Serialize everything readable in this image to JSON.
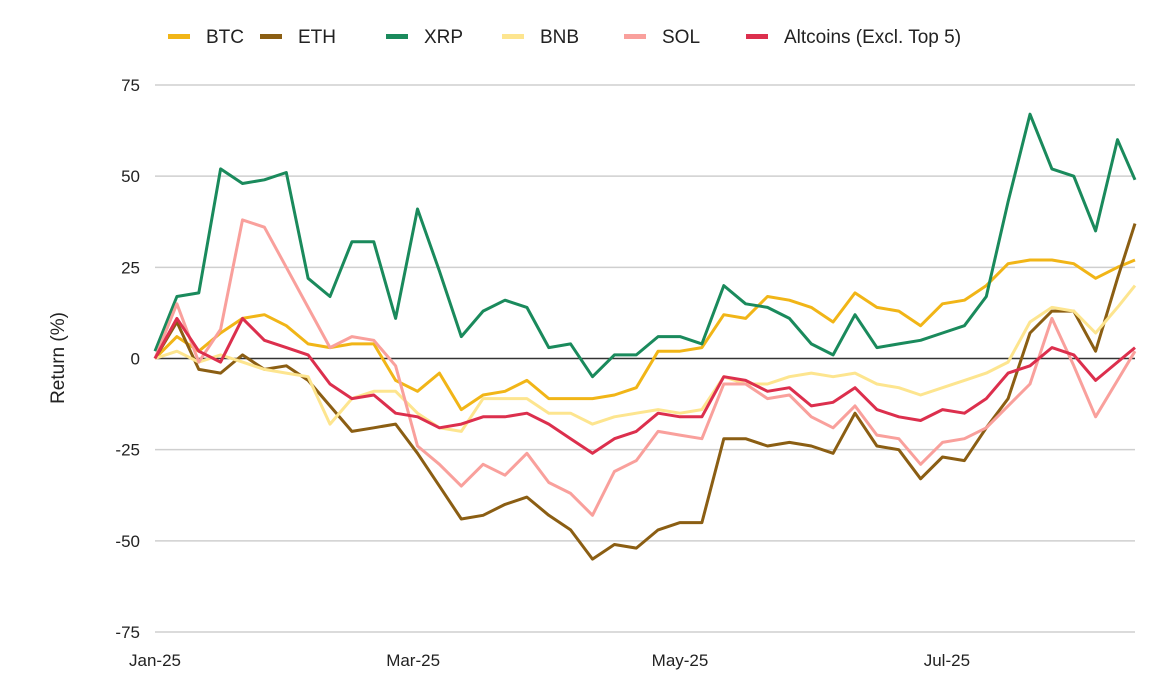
{
  "chart_data": {
    "type": "line",
    "title": "",
    "xlabel": "",
    "ylabel": "Return (%)",
    "ylim": [
      -75,
      75
    ],
    "yticks": [
      75,
      50,
      25,
      0,
      -25,
      -50,
      -75
    ],
    "xticks": [
      {
        "date": "2025-01-01",
        "label": "Jan-25"
      },
      {
        "date": "2025-03-01",
        "label": "Mar-25"
      },
      {
        "date": "2025-05-01",
        "label": "May-25"
      },
      {
        "date": "2025-07-01",
        "label": "Jul-25"
      }
    ],
    "xlim": [
      "2025-01-01",
      "2025-08-13"
    ],
    "grid": "horizontal",
    "legend_position": "top",
    "x": [
      "2025-01-01",
      "2025-01-06",
      "2025-01-11",
      "2025-01-16",
      "2025-01-21",
      "2025-01-26",
      "2025-01-31",
      "2025-02-05",
      "2025-02-10",
      "2025-02-15",
      "2025-02-20",
      "2025-02-25",
      "2025-03-02",
      "2025-03-07",
      "2025-03-12",
      "2025-03-17",
      "2025-03-22",
      "2025-03-27",
      "2025-04-01",
      "2025-04-06",
      "2025-04-11",
      "2025-04-16",
      "2025-04-21",
      "2025-04-26",
      "2025-05-01",
      "2025-05-06",
      "2025-05-11",
      "2025-05-16",
      "2025-05-21",
      "2025-05-26",
      "2025-05-31",
      "2025-06-05",
      "2025-06-10",
      "2025-06-15",
      "2025-06-20",
      "2025-06-25",
      "2025-06-30",
      "2025-07-05",
      "2025-07-10",
      "2025-07-15",
      "2025-07-20",
      "2025-07-25",
      "2025-07-30",
      "2025-08-04",
      "2025-08-09",
      "2025-08-13"
    ],
    "series": [
      {
        "name": "BTC",
        "color": "#f1b517",
        "values": [
          0,
          6,
          2,
          7,
          11,
          12,
          9,
          4,
          3,
          4,
          4,
          -6,
          -9,
          -4,
          -14,
          -10,
          -9,
          -6,
          -11,
          -11,
          -11,
          -10,
          -8,
          2,
          2,
          3,
          12,
          11,
          17,
          16,
          14,
          10,
          18,
          14,
          13,
          9,
          15,
          16,
          20,
          26,
          27,
          27,
          26,
          22,
          25,
          27
        ]
      },
      {
        "name": "ETH",
        "color": "#8b5e13",
        "values": [
          0,
          10,
          -3,
          -4,
          1,
          -3,
          -2,
          -6,
          -13,
          -20,
          -19,
          -18,
          -26,
          -35,
          -44,
          -43,
          -40,
          -38,
          -43,
          -47,
          -55,
          -51,
          -52,
          -47,
          -45,
          -45,
          -22,
          -22,
          -24,
          -23,
          -24,
          -26,
          -15,
          -24,
          -25,
          -33,
          -27,
          -28,
          -19,
          -11,
          7,
          13,
          13,
          2,
          22,
          37
        ]
      },
      {
        "name": "XRP",
        "color": "#1a8a5c",
        "values": [
          2,
          17,
          18,
          52,
          48,
          49,
          51,
          22,
          17,
          32,
          32,
          11,
          41,
          24,
          6,
          13,
          16,
          14,
          3,
          4,
          -5,
          1,
          1,
          6,
          6,
          4,
          20,
          15,
          14,
          11,
          4,
          1,
          12,
          3,
          4,
          5,
          7,
          9,
          17,
          43,
          67,
          52,
          50,
          35,
          60,
          49
        ]
      },
      {
        "name": "BNB",
        "color": "#fde58f",
        "values": [
          0,
          2,
          -1,
          1,
          -1,
          -3,
          -4,
          -5,
          -18,
          -11,
          -9,
          -9,
          -15,
          -19,
          -20,
          -11,
          -11,
          -11,
          -15,
          -15,
          -18,
          -16,
          -15,
          -14,
          -15,
          -14,
          -5,
          -7,
          -7,
          -5,
          -4,
          -5,
          -4,
          -7,
          -8,
          -10,
          -8,
          -6,
          -4,
          -1,
          10,
          14,
          13,
          7,
          14,
          20
        ]
      },
      {
        "name": "SOL",
        "color": "#f9a09c",
        "values": [
          0,
          15,
          -1,
          8,
          38,
          36,
          25,
          14,
          3,
          6,
          5,
          -2,
          -24,
          -29,
          -35,
          -29,
          -32,
          -26,
          -34,
          -37,
          -43,
          -31,
          -28,
          -20,
          -21,
          -22,
          -7,
          -7,
          -11,
          -10,
          -16,
          -19,
          -13,
          -21,
          -22,
          -29,
          -23,
          -22,
          -19,
          -13,
          -7,
          11,
          -2,
          -16,
          -6,
          2
        ]
      },
      {
        "name": "Altcoins (Excl. Top 5)",
        "color": "#dc2f4d",
        "values": [
          0,
          11,
          2,
          -1,
          11,
          5,
          3,
          1,
          -7,
          -11,
          -10,
          -15,
          -16,
          -19,
          -18,
          -16,
          -16,
          -15,
          -18,
          -22,
          -26,
          -22,
          -20,
          -15,
          -16,
          -16,
          -5,
          -6,
          -9,
          -8,
          -13,
          -12,
          -8,
          -14,
          -16,
          -17,
          -14,
          -15,
          -11,
          -4,
          -2,
          3,
          1,
          -6,
          -1,
          3
        ]
      }
    ]
  }
}
